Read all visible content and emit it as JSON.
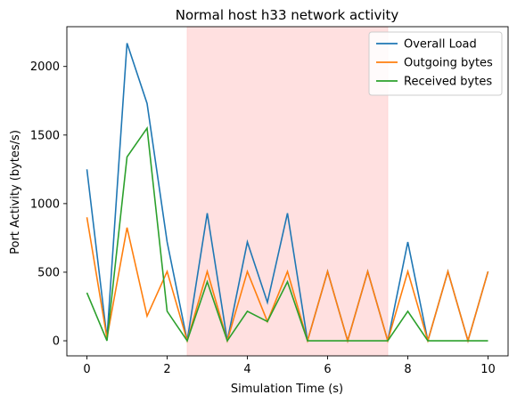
{
  "chart_data": {
    "type": "line",
    "title": "Normal host h33 network activity",
    "xlabel": "Simulation Time (s)",
    "ylabel": "Port Activity (bytes/s)",
    "xlim": [
      -0.5,
      10.5
    ],
    "ylim": [
      -110,
      2290
    ],
    "xticks": [
      0,
      2,
      4,
      6,
      8,
      10
    ],
    "yticks": [
      0,
      500,
      1000,
      1500,
      2000
    ],
    "grid": false,
    "legend_position": "top-right",
    "shaded_region": {
      "x_start": 2.5,
      "x_end": 7.5,
      "color": "#ffe0e0"
    },
    "x": [
      0,
      0.5,
      1,
      1.5,
      2,
      2.5,
      3,
      3.5,
      4,
      4.5,
      5,
      5.5,
      6,
      6.5,
      7,
      7.5,
      8,
      8.5,
      9,
      9.5,
      10
    ],
    "series": [
      {
        "name": "Overall Load",
        "color": "#1f77b4",
        "values": [
          1250,
          20,
          2170,
          1730,
          720,
          0,
          930,
          0,
          720,
          280,
          930,
          0,
          505,
          0,
          505,
          0,
          720,
          0,
          505,
          0,
          505
        ]
      },
      {
        "name": "Outgoing bytes",
        "color": "#ff7f0e",
        "values": [
          900,
          20,
          825,
          180,
          505,
          0,
          505,
          0,
          505,
          140,
          505,
          0,
          505,
          0,
          505,
          0,
          505,
          0,
          505,
          0,
          505
        ]
      },
      {
        "name": "Received bytes",
        "color": "#2ca02c",
        "values": [
          350,
          0,
          1340,
          1550,
          215,
          0,
          430,
          0,
          215,
          140,
          430,
          0,
          0,
          0,
          0,
          0,
          215,
          0,
          0,
          0,
          0
        ]
      }
    ]
  }
}
